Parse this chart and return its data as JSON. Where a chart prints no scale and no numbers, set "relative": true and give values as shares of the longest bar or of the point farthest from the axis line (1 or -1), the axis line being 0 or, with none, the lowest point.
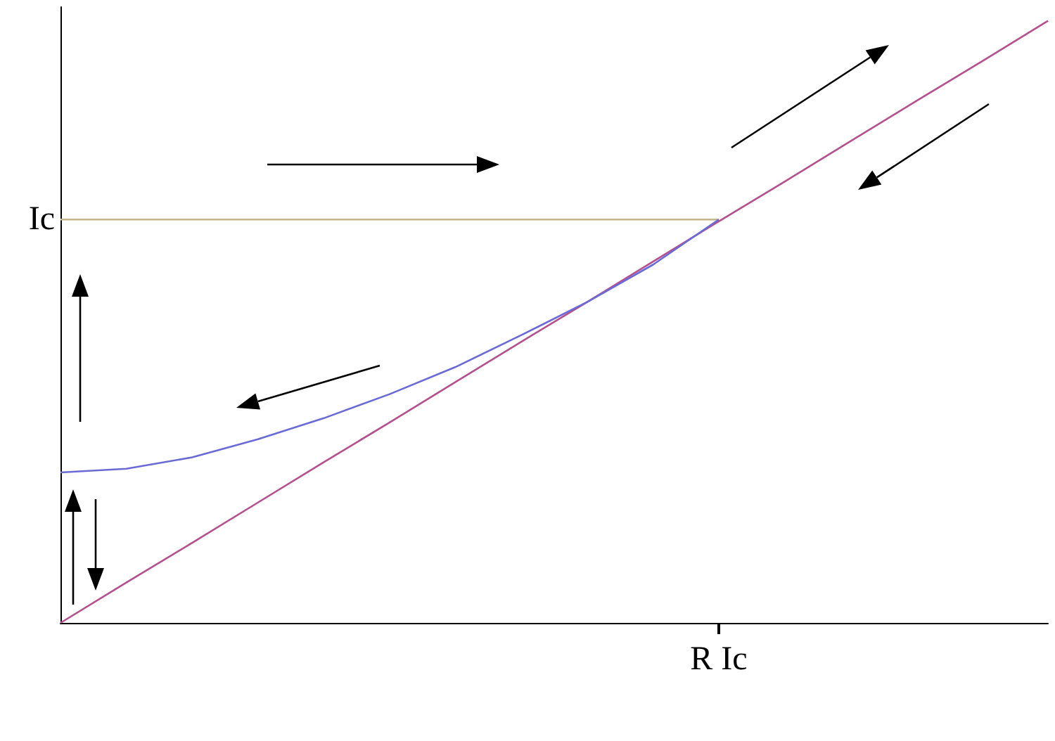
{
  "chart_data": {
    "type": "line",
    "relative": true,
    "categories": [
      null,
      null,
      null,
      null,
      null,
      null,
      null,
      null,
      null,
      null,
      null,
      null,
      null,
      null,
      null,
      null
    ],
    "series": [
      {
        "color": "#b5508f",
        "values": [
          0,
          0.067,
          0.133,
          0.2,
          0.267,
          0.333,
          0.4,
          0.467,
          0.533,
          0.6,
          0.667,
          0.733,
          0.8,
          0.867,
          0.933,
          1
        ]
      },
      {
        "color": "#c5b58a",
        "values": [
          0.67,
          0.67,
          0.67,
          0.67,
          0.67,
          0.67,
          0.67,
          0.67,
          0.67,
          0.67,
          0.67,
          null,
          null,
          null,
          null,
          null
        ]
      },
      {
        "color": "#6a6ad6",
        "values": [
          0.25,
          0.256,
          0.275,
          0.305,
          0.34,
          0.38,
          0.425,
          0.478,
          0.533,
          0.595,
          0.67,
          null,
          null,
          null,
          null,
          null
        ]
      }
    ],
    "annotations": [
      "Ic",
      "R Ic"
    ]
  }
}
